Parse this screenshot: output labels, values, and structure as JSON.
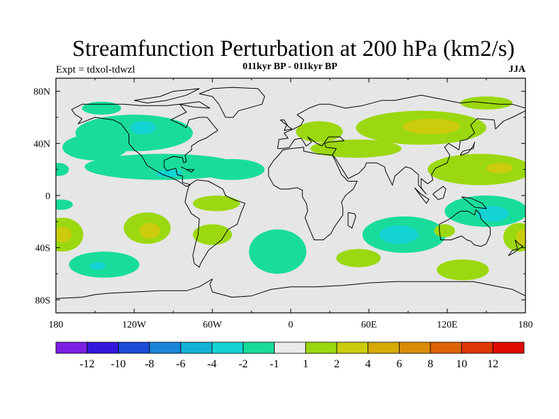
{
  "title": "Streamfunction Perturbation at 200 hPa (km2/s)",
  "subtitle": "011kyr BP - 011kyr BP",
  "left_label": "Expt = tdxol-tdwzl",
  "right_label": "JJA",
  "map": {
    "lon_range": [
      -180,
      180
    ],
    "lat_range": [
      -90,
      90
    ],
    "background_color": "#e6e6e6",
    "lon_ticks": [
      {
        "lon": -180,
        "label": "180"
      },
      {
        "lon": -120,
        "label": "120W"
      },
      {
        "lon": -60,
        "label": "60W"
      },
      {
        "lon": 0,
        "label": "0"
      },
      {
        "lon": 60,
        "label": "60E"
      },
      {
        "lon": 120,
        "label": "120E"
      },
      {
        "lon": 180,
        "label": "180"
      }
    ],
    "lat_ticks": [
      {
        "lat": 80,
        "label": "80N"
      },
      {
        "lat": 40,
        "label": "40N"
      },
      {
        "lat": 0,
        "label": "0"
      },
      {
        "lat": -40,
        "label": "40S"
      },
      {
        "lat": -80,
        "label": "80S"
      }
    ]
  },
  "colorbar": {
    "colors": [
      "#7b1fe3",
      "#3318dc",
      "#1d4bd6",
      "#1a86db",
      "#12b1d6",
      "#14d3d3",
      "#19dc9c",
      "#ebebeb",
      "#9bd80f",
      "#cccc0c",
      "#d6ab08",
      "#d98c06",
      "#dc6205",
      "#dd3605",
      "#de0b05"
    ],
    "labels": [
      "-12",
      "-10",
      "-8",
      "-6",
      "-4",
      "-2",
      "-1",
      "1",
      "2",
      "4",
      "6",
      "8",
      "10",
      "12"
    ]
  },
  "field": {
    "level_colors": {
      "n1": "#19dc9c",
      "n2": "#14d3d3",
      "n4": "#12b1d6",
      "p1": "#9bd80f",
      "p2": "#cccc0c",
      "p4": "#d6ab08"
    },
    "blobs": [
      {
        "level": "n1",
        "lon": -145,
        "lat": 67,
        "rlon": 15,
        "rlat": 5
      },
      {
        "level": "n1",
        "lon": -120,
        "lat": 48,
        "rlon": 45,
        "rlat": 14
      },
      {
        "level": "n1",
        "lon": -98,
        "lat": 22,
        "rlon": 60,
        "rlat": 10
      },
      {
        "level": "n1",
        "lon": -150,
        "lat": 37,
        "rlon": 25,
        "rlat": 10
      },
      {
        "level": "n1",
        "lon": -45,
        "lat": 20,
        "rlon": 25,
        "rlat": 8
      },
      {
        "level": "n1",
        "lon": -75,
        "lat": 23,
        "rlon": 20,
        "rlat": 7
      },
      {
        "level": "n1",
        "lon": -178,
        "lat": 20,
        "rlon": 8,
        "rlat": 5
      },
      {
        "level": "n2",
        "lon": -113,
        "lat": 52,
        "rlon": 10,
        "rlat": 5
      },
      {
        "level": "n2",
        "lon": -93,
        "lat": 17,
        "rlon": 10,
        "rlat": 3
      },
      {
        "level": "n1",
        "lon": -176,
        "lat": -7,
        "rlon": 9,
        "rlat": 4
      },
      {
        "level": "n1",
        "lon": -143,
        "lat": -53,
        "rlon": 27,
        "rlat": 10
      },
      {
        "level": "n2",
        "lon": -148,
        "lat": -54,
        "rlon": 6,
        "rlat": 3
      },
      {
        "level": "n1",
        "lon": -10,
        "lat": -43,
        "rlon": 22,
        "rlat": 17
      },
      {
        "level": "n1",
        "lon": 87,
        "lat": -30,
        "rlon": 32,
        "rlat": 14
      },
      {
        "level": "n2",
        "lon": 83,
        "lat": -30,
        "rlon": 15,
        "rlat": 7
      },
      {
        "level": "n1",
        "lon": 150,
        "lat": -12,
        "rlon": 32,
        "rlat": 12
      },
      {
        "level": "n2",
        "lon": 155,
        "lat": -14,
        "rlon": 12,
        "rlat": 6
      },
      {
        "level": "p1",
        "lon": 22,
        "lat": 49,
        "rlon": 18,
        "rlat": 8
      },
      {
        "level": "p1",
        "lon": 50,
        "lat": 36,
        "rlon": 35,
        "rlat": 7
      },
      {
        "level": "p1",
        "lon": 100,
        "lat": 52,
        "rlon": 50,
        "rlat": 13
      },
      {
        "level": "p2",
        "lon": 108,
        "lat": 53,
        "rlon": 22,
        "rlat": 6
      },
      {
        "level": "p1",
        "lon": 150,
        "lat": 71,
        "rlon": 20,
        "rlat": 5
      },
      {
        "level": "p1",
        "lon": 145,
        "lat": 20,
        "rlon": 40,
        "rlat": 12
      },
      {
        "level": "p2",
        "lon": 160,
        "lat": 21,
        "rlon": 10,
        "rlat": 4
      },
      {
        "level": "p1",
        "lon": -175,
        "lat": -30,
        "rlon": 16,
        "rlat": 13
      },
      {
        "level": "p2",
        "lon": -175,
        "lat": -30,
        "rlon": 7,
        "rlat": 6
      },
      {
        "level": "p1",
        "lon": -110,
        "lat": -25,
        "rlon": 18,
        "rlat": 12
      },
      {
        "level": "p2",
        "lon": -108,
        "lat": -27,
        "rlon": 8,
        "rlat": 6
      },
      {
        "level": "p1",
        "lon": -60,
        "lat": -30,
        "rlon": 15,
        "rlat": 8
      },
      {
        "level": "p1",
        "lon": -57,
        "lat": -6,
        "rlon": 18,
        "rlat": 6
      },
      {
        "level": "p1",
        "lon": 52,
        "lat": -48,
        "rlon": 17,
        "rlat": 7
      },
      {
        "level": "p1",
        "lon": 132,
        "lat": -57,
        "rlon": 20,
        "rlat": 8
      },
      {
        "level": "p1",
        "lon": 118,
        "lat": -27,
        "rlon": 8,
        "rlat": 5
      },
      {
        "level": "p1",
        "lon": 175,
        "lat": -32,
        "rlon": 12,
        "rlat": 11
      },
      {
        "level": "p2",
        "lon": 178,
        "lat": -32,
        "rlon": 5,
        "rlat": 6
      }
    ]
  }
}
